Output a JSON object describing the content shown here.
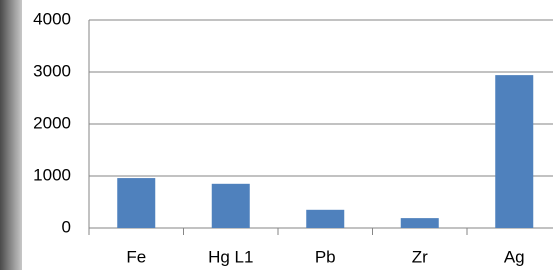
{
  "chart_data": {
    "type": "bar",
    "categories": [
      "Fe",
      "Hg L1",
      "Pb",
      "Zr",
      "Ag"
    ],
    "values": [
      960,
      850,
      350,
      190,
      2940
    ],
    "color": "#4f81bd",
    "ylim": [
      0,
      4000
    ],
    "yticks": [
      0,
      1000,
      2000,
      3000,
      4000
    ],
    "grid": true
  }
}
